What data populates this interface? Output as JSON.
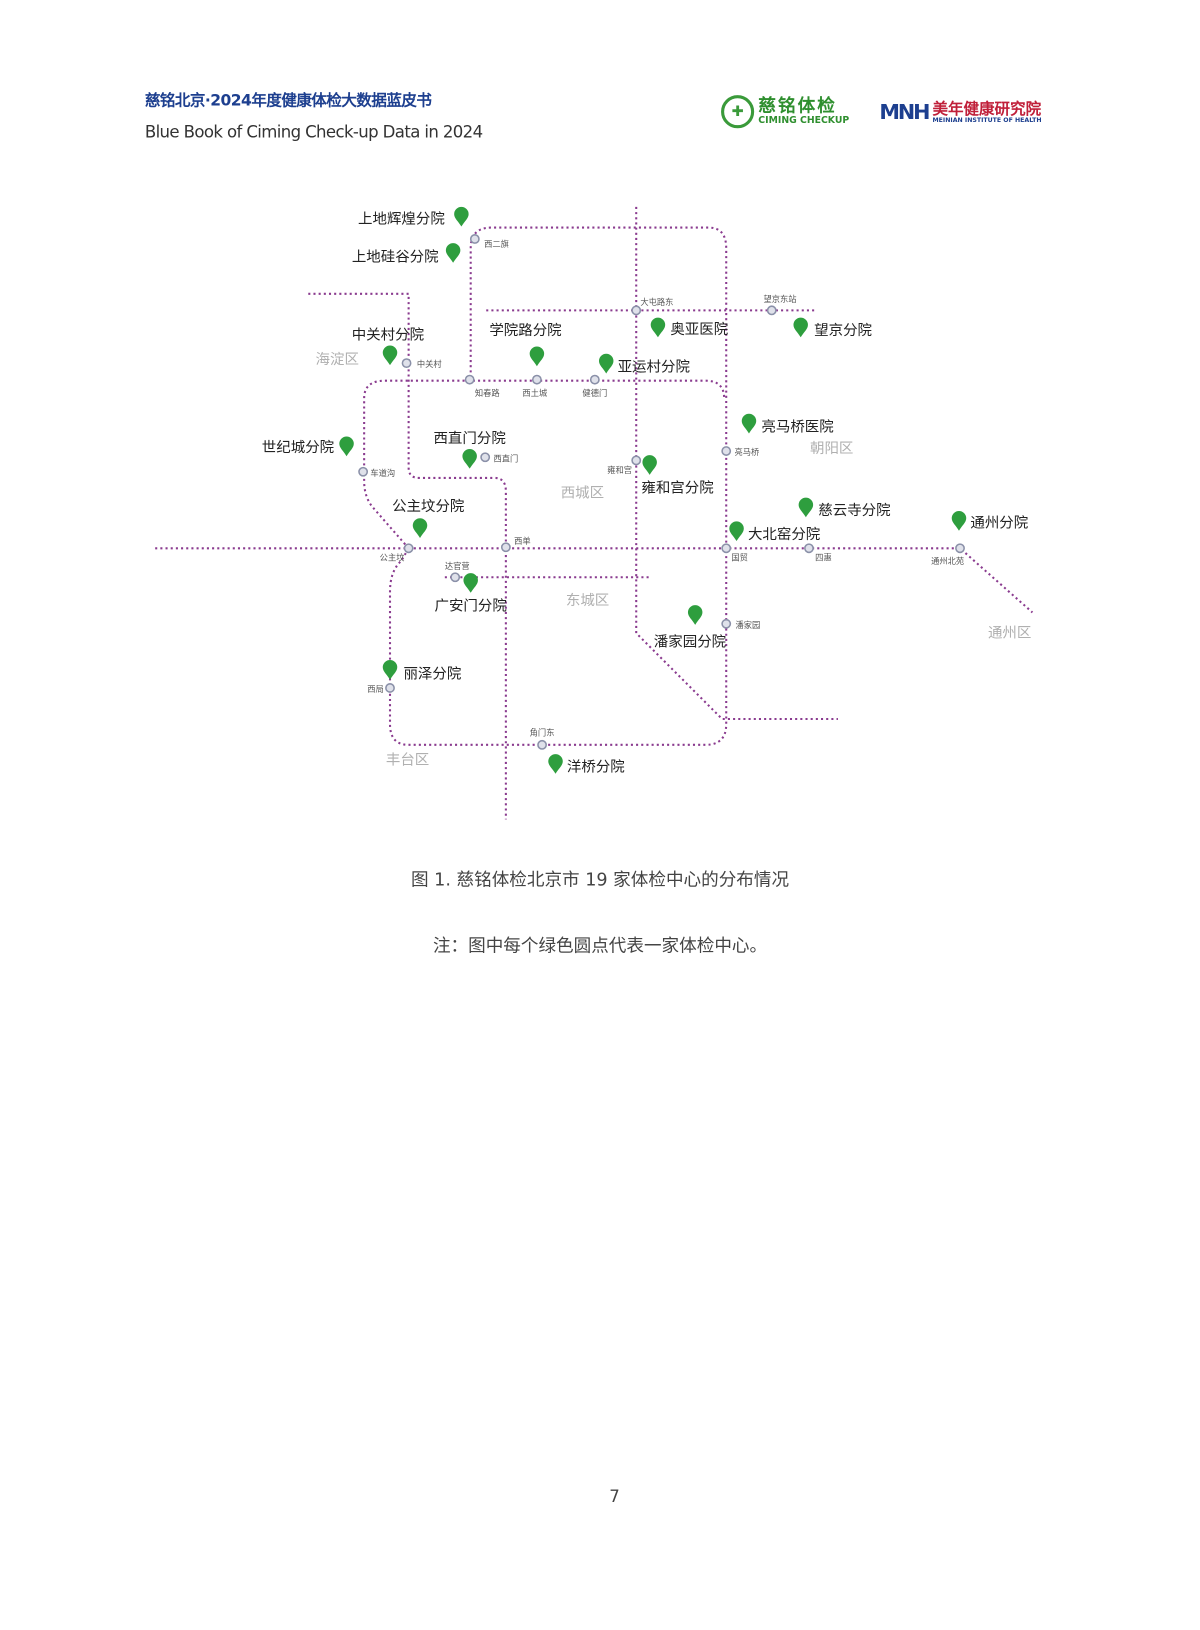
{
  "header": {
    "title_cn": "慈铭北京·2024年度健康体检大数据蓝皮书",
    "title_en": "Blue Book of Ciming Check-up Data in 2024",
    "logo_ciming_cn": "慈铭体检",
    "logo_ciming_en": "CIMING CHECKUP",
    "logo_meinian_mark": "MNH",
    "logo_meinian_cn": "美年健康研究院",
    "logo_meinian_en": "MEINIAN INSTITUTE OF HEALTH"
  },
  "map": {
    "colors": {
      "pin": "#2e9e3e",
      "metro_line": "#8a3b8f",
      "station": "#8a90a8",
      "district": "#b0b0b0"
    },
    "icons": {
      "center": "map-pin-icon",
      "station": "metro-station-icon"
    },
    "centers": [
      "上地辉煌分院",
      "上地硅谷分院",
      "中关村分院",
      "学院路分院",
      "奥亚医院",
      "亚运村分院",
      "望京分院",
      "世纪城分院",
      "西直门分院",
      "亮马桥医院",
      "雍和宫分院",
      "慈云寺分院",
      "大北窑分院",
      "通州分院",
      "公主坟分院",
      "广安门分院",
      "潘家园分院",
      "丽泽分院",
      "洋桥分院"
    ],
    "stations": [
      "西二旗",
      "大屯路东",
      "望京东站",
      "中关村",
      "知春路",
      "西土城",
      "健德门",
      "西直门",
      "车道沟",
      "雍和宫",
      "亮马桥",
      "公主坟",
      "西单",
      "国贸",
      "四惠",
      "通州北苑",
      "达官营",
      "潘家园",
      "西局",
      "角门东"
    ],
    "districts": [
      "海淀区",
      "朝阳区",
      "西城区",
      "东城区",
      "通州区",
      "丰台区"
    ]
  },
  "caption": "图 1.  慈铭体检北京市 19 家体检中心的分布情况",
  "note": "注：图中每个绿色圆点代表一家体检中心。",
  "page_number": "7"
}
